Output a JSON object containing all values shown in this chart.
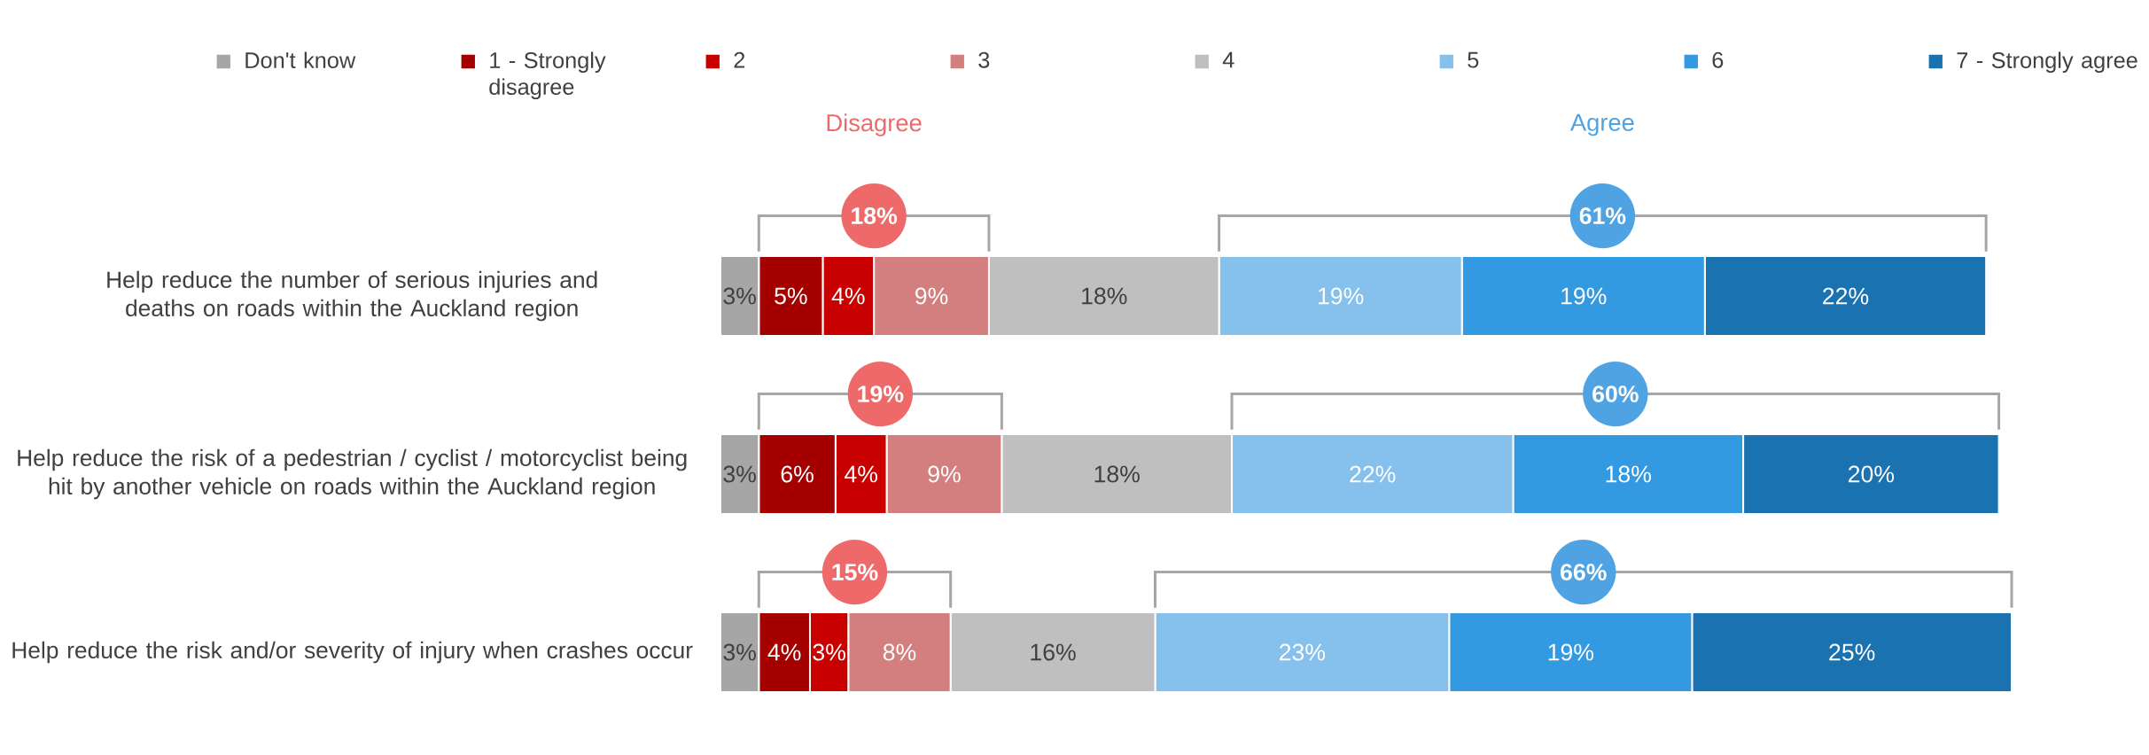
{
  "chart_data": {
    "type": "bar",
    "orientation": "horizontal",
    "stacked": true,
    "legend": "top",
    "tick_labels": "y",
    "categories": [
      "Help reduce the number of serious injuries and deaths on roads within the Auckland region",
      "Help reduce the risk of a pedestrian / cyclist / motorcyclist being hit by another vehicle on roads within the Auckland region",
      "Help reduce the risk and/or severity of injury when crashes occur"
    ],
    "series": [
      {
        "name": "Don't know",
        "color": "#a6a6a6",
        "values": [
          3,
          3,
          3
        ],
        "value_labels": [
          "3%",
          "3%",
          "3%"
        ]
      },
      {
        "name": "1 - Strongly disagree",
        "color": "#a50000",
        "values": [
          5,
          6,
          4
        ],
        "value_labels": [
          "5%",
          "6%",
          "4%"
        ]
      },
      {
        "name": "2",
        "color": "#c80000",
        "values": [
          4,
          4,
          3
        ],
        "value_labels": [
          "4%",
          "4%",
          "3%"
        ]
      },
      {
        "name": "3",
        "color": "#d47f7f",
        "values": [
          9,
          9,
          8
        ],
        "value_labels": [
          "9%",
          "9%",
          "8%"
        ]
      },
      {
        "name": "4",
        "color": "#bfbfbf",
        "values": [
          18,
          18,
          16
        ],
        "value_labels": [
          "18%",
          "18%",
          "16%"
        ]
      },
      {
        "name": "5",
        "color": "#85c1ec",
        "values": [
          19,
          22,
          23
        ],
        "value_labels": [
          "19%",
          "22%",
          "23%"
        ]
      },
      {
        "name": "6",
        "color": "#3399e0",
        "values": [
          19,
          18,
          19
        ],
        "value_labels": [
          "19%",
          "18%",
          "19%"
        ]
      },
      {
        "name": "7 - Strongly agree",
        "color": "#1a72b0",
        "values": [
          22,
          20,
          25
        ],
        "value_labels": [
          "22%",
          "20%",
          "25%"
        ]
      }
    ],
    "annotations": [
      "Disagree",
      "Agree",
      "18%",
      "61%",
      "19%",
      "60%",
      "15%",
      "66%"
    ]
  }
}
